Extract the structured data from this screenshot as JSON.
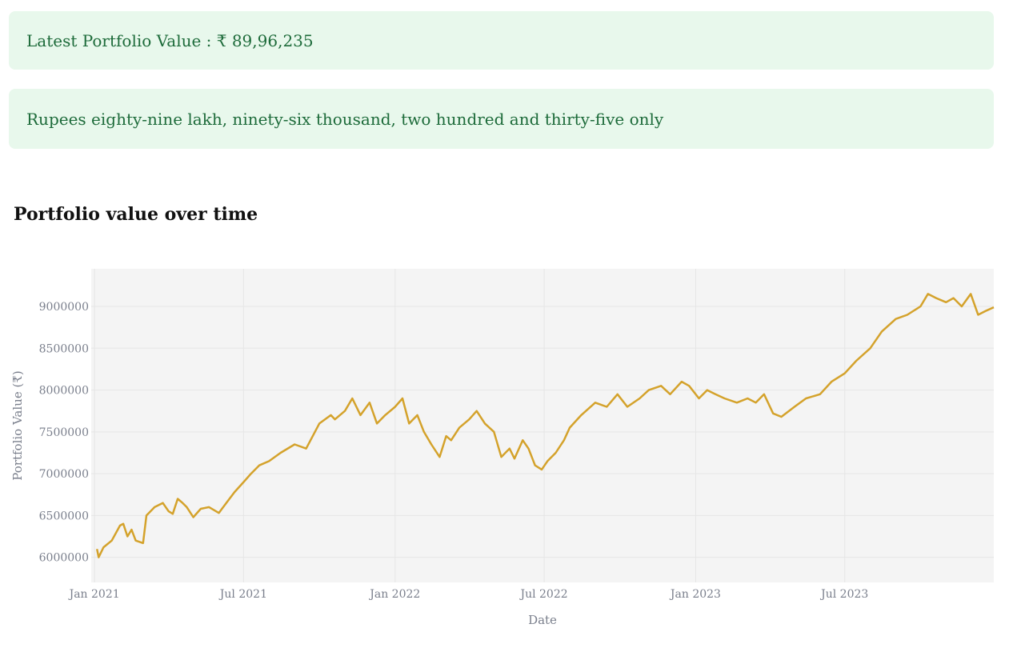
{
  "alerts": {
    "latest_value": "Latest Portfolio Value : ₹ 89,96,235",
    "in_words": "Rupees eighty-nine lakh, ninety-six thousand, two hundred and thirty-five only"
  },
  "colors": {
    "alert_bg": "#e8f8ec",
    "alert_text": "#1d6b3a",
    "line": "#d4a22b",
    "plot_bg": "#f4f4f4",
    "grid": "#e6e6e6",
    "axis_text": "#7a7f8c"
  },
  "chart_data": {
    "type": "line",
    "title": "Portfolio value over time",
    "xlabel": "Date",
    "ylabel": "Portfolio Value (₹)",
    "x_ticks": [
      {
        "date": "2021-01-01",
        "label": "Jan 2021"
      },
      {
        "date": "2021-07-01",
        "label": "Jul 2021"
      },
      {
        "date": "2022-01-01",
        "label": "Jan 2022"
      },
      {
        "date": "2022-07-01",
        "label": "Jul 2022"
      },
      {
        "date": "2023-01-01",
        "label": "Jan 2023"
      },
      {
        "date": "2023-07-01",
        "label": "Jul 2023"
      }
    ],
    "y_ticks": [
      6000000,
      6500000,
      7000000,
      7500000,
      8000000,
      8500000,
      9000000
    ],
    "xlim": [
      "2020-12-28",
      "2023-12-29"
    ],
    "ylim": [
      5700000,
      9450000
    ],
    "grid": true,
    "legend": false,
    "series": [
      {
        "x": [
          "2021-01-04",
          "2021-01-06",
          "2021-01-12",
          "2021-01-22",
          "2021-02-01",
          "2021-02-05",
          "2021-02-10",
          "2021-02-15",
          "2021-02-20",
          "2021-03-01",
          "2021-03-05",
          "2021-03-15",
          "2021-03-25",
          "2021-04-01",
          "2021-04-06",
          "2021-04-12",
          "2021-04-18",
          "2021-04-23",
          "2021-05-01",
          "2021-05-10",
          "2021-05-20",
          "2021-06-01",
          "2021-06-10",
          "2021-06-20",
          "2021-07-01",
          "2021-07-10",
          "2021-07-20",
          "2021-08-01",
          "2021-08-15",
          "2021-09-01",
          "2021-09-15",
          "2021-10-01",
          "2021-10-15",
          "2021-10-20",
          "2021-11-01",
          "2021-11-10",
          "2021-11-20",
          "2021-12-01",
          "2021-12-10",
          "2021-12-20",
          "2022-01-01",
          "2022-01-10",
          "2022-01-18",
          "2022-01-28",
          "2022-02-05",
          "2022-02-14",
          "2022-02-24",
          "2022-03-04",
          "2022-03-10",
          "2022-03-20",
          "2022-04-01",
          "2022-04-10",
          "2022-04-20",
          "2022-05-01",
          "2022-05-10",
          "2022-05-20",
          "2022-05-26",
          "2022-06-05",
          "2022-06-12",
          "2022-06-20",
          "2022-06-28",
          "2022-07-05",
          "2022-07-15",
          "2022-07-25",
          "2022-08-01",
          "2022-08-15",
          "2022-09-01",
          "2022-09-15",
          "2022-09-28",
          "2022-10-10",
          "2022-10-25",
          "2022-11-05",
          "2022-11-20",
          "2022-12-01",
          "2022-12-15",
          "2022-12-24",
          "2023-01-05",
          "2023-01-15",
          "2023-01-25",
          "2023-02-05",
          "2023-02-20",
          "2023-03-05",
          "2023-03-15",
          "2023-03-25",
          "2023-04-05",
          "2023-04-15",
          "2023-05-01",
          "2023-05-15",
          "2023-06-01",
          "2023-06-15",
          "2023-07-01",
          "2023-07-15",
          "2023-08-01",
          "2023-08-15",
          "2023-09-01",
          "2023-09-15",
          "2023-10-01",
          "2023-10-10",
          "2023-10-20",
          "2023-11-01",
          "2023-11-10",
          "2023-11-20",
          "2023-12-01",
          "2023-12-10",
          "2023-12-20",
          "2023-12-29"
        ],
        "values": [
          6100000,
          6000000,
          6120000,
          6200000,
          6380000,
          6400000,
          6250000,
          6330000,
          6200000,
          6170000,
          6500000,
          6600000,
          6650000,
          6550000,
          6520000,
          6700000,
          6650000,
          6600000,
          6480000,
          6580000,
          6600000,
          6530000,
          6650000,
          6780000,
          6900000,
          7000000,
          7100000,
          7150000,
          7250000,
          7350000,
          7300000,
          7600000,
          7700000,
          7650000,
          7750000,
          7900000,
          7700000,
          7850000,
          7600000,
          7700000,
          7800000,
          7900000,
          7600000,
          7700000,
          7500000,
          7350000,
          7200000,
          7450000,
          7400000,
          7550000,
          7650000,
          7750000,
          7600000,
          7500000,
          7200000,
          7300000,
          7180000,
          7400000,
          7300000,
          7100000,
          7050000,
          7150000,
          7250000,
          7400000,
          7550000,
          7700000,
          7850000,
          7800000,
          7950000,
          7800000,
          7900000,
          8000000,
          8050000,
          7950000,
          8100000,
          8050000,
          7900000,
          8000000,
          7950000,
          7900000,
          7850000,
          7900000,
          7850000,
          7950000,
          7720000,
          7680000,
          7800000,
          7900000,
          7950000,
          8100000,
          8200000,
          8350000,
          8500000,
          8700000,
          8850000,
          8900000,
          9000000,
          9150000,
          9100000,
          9050000,
          9100000,
          9000000,
          9150000,
          8900000,
          8950000,
          8990000
        ]
      }
    ]
  }
}
